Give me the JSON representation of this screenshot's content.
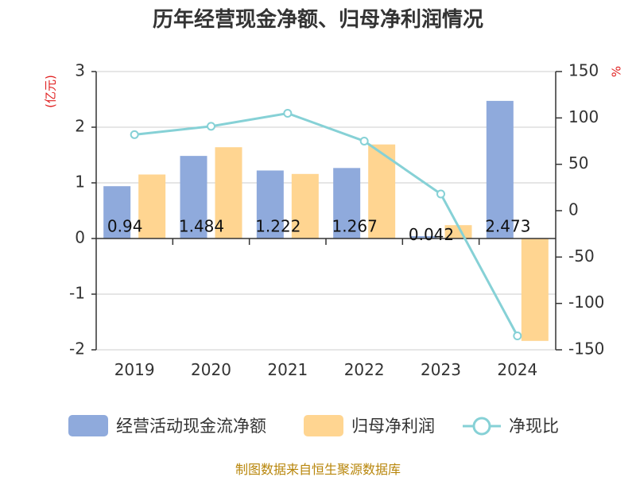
{
  "title": "历年经营现金净额、归母净利润情况",
  "source": "制图数据来自恒生聚源数据库",
  "left_unit": "(亿元)",
  "right_unit": "%",
  "chart_data": {
    "type": "bar",
    "title": "历年经营现金净额、归母净利润情况",
    "categories": [
      "2019",
      "2020",
      "2021",
      "2022",
      "2023",
      "2024"
    ],
    "y_left": {
      "label": "(亿元)",
      "ylim": [
        -2,
        3
      ],
      "ticks": [
        3,
        2,
        1,
        0,
        -1,
        -2
      ]
    },
    "y_right": {
      "label": "%",
      "ylim": [
        -150,
        150
      ],
      "ticks": [
        150,
        100,
        50,
        0,
        -50,
        -100,
        -150
      ]
    },
    "series": [
      {
        "name": "经营活动现金流净额",
        "type": "bar",
        "axis": "left",
        "color": "#8faadc",
        "values": [
          0.94,
          1.484,
          1.222,
          1.267,
          0.042,
          2.473
        ],
        "labels": [
          "0.94",
          "1.484",
          "1.222",
          "1.267",
          "0.042",
          "2.473"
        ]
      },
      {
        "name": "归母净利润",
        "type": "bar",
        "axis": "left",
        "color": "#ffd591",
        "values": [
          1.15,
          1.64,
          1.16,
          1.69,
          0.24,
          -1.84
        ]
      },
      {
        "name": "净现比",
        "type": "line",
        "axis": "right",
        "color": "#86d1d6",
        "values": [
          82,
          91,
          105,
          75,
          18,
          -135
        ]
      }
    ],
    "grid": true,
    "legend_position": "bottom"
  }
}
